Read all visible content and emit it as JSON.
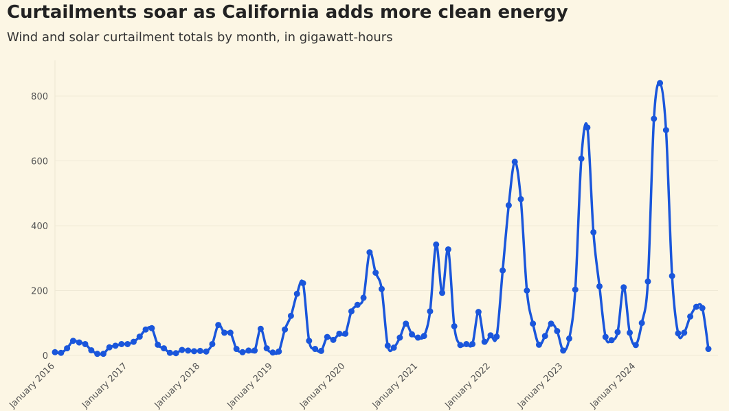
{
  "chart_data": {
    "type": "line",
    "title": "Curtailments soar as California adds more clean energy",
    "subtitle": "Wind and solar curtailment totals by month, in gigawatt-hours",
    "categories": [
      "January 2016",
      null,
      null,
      null,
      null,
      null,
      null,
      null,
      null,
      null,
      null,
      null,
      "January 2017",
      null,
      null,
      null,
      null,
      null,
      null,
      null,
      null,
      null,
      null,
      null,
      "January 2018",
      null,
      null,
      null,
      null,
      null,
      null,
      null,
      null,
      null,
      null,
      null,
      "January 2019",
      null,
      null,
      null,
      null,
      null,
      null,
      null,
      null,
      null,
      null,
      null,
      "January 2020",
      null,
      null,
      null,
      null,
      null,
      null,
      null,
      null,
      null,
      null,
      null,
      "January 2021",
      null,
      null,
      null,
      null,
      null,
      null,
      null,
      null,
      null,
      null,
      null,
      "January 2022",
      null,
      null,
      null,
      null,
      null,
      null,
      null,
      null,
      null,
      null,
      null,
      "January 2023",
      null,
      null,
      null,
      null,
      null,
      null,
      null,
      null,
      null,
      null,
      null,
      "January 2024",
      null,
      null,
      null,
      null,
      null,
      null,
      null,
      null,
      null,
      null,
      null,
      null
    ],
    "series": [
      {
        "name": "Curtailment",
        "color": "#1a56db",
        "values": [
          10,
          8,
          22,
          45,
          40,
          35,
          16,
          5,
          5,
          25,
          30,
          35,
          35,
          42,
          58,
          80,
          84,
          33,
          22,
          8,
          7,
          17,
          15,
          13,
          14,
          12,
          35,
          94,
          70,
          70,
          20,
          10,
          15,
          15,
          82,
          22,
          9,
          12,
          80,
          122,
          190,
          223,
          45,
          20,
          14,
          57,
          48,
          67,
          67,
          136,
          156,
          178,
          318,
          255,
          205,
          30,
          24,
          55,
          98,
          65,
          55,
          60,
          136,
          342,
          193,
          327,
          90,
          32,
          35,
          35,
          134,
          42,
          62,
          58,
          262,
          463,
          597,
          482,
          200,
          98,
          33,
          60,
          98,
          75,
          15,
          52,
          203,
          607,
          703,
          380,
          213,
          57,
          47,
          72,
          210,
          70,
          32,
          100,
          228,
          730,
          840,
          695,
          245,
          68,
          70,
          120,
          150,
          146,
          20
        ]
      }
    ],
    "ylim": [
      0,
      910
    ],
    "yticks": [
      0,
      200,
      400,
      600,
      800
    ],
    "grid": true
  }
}
